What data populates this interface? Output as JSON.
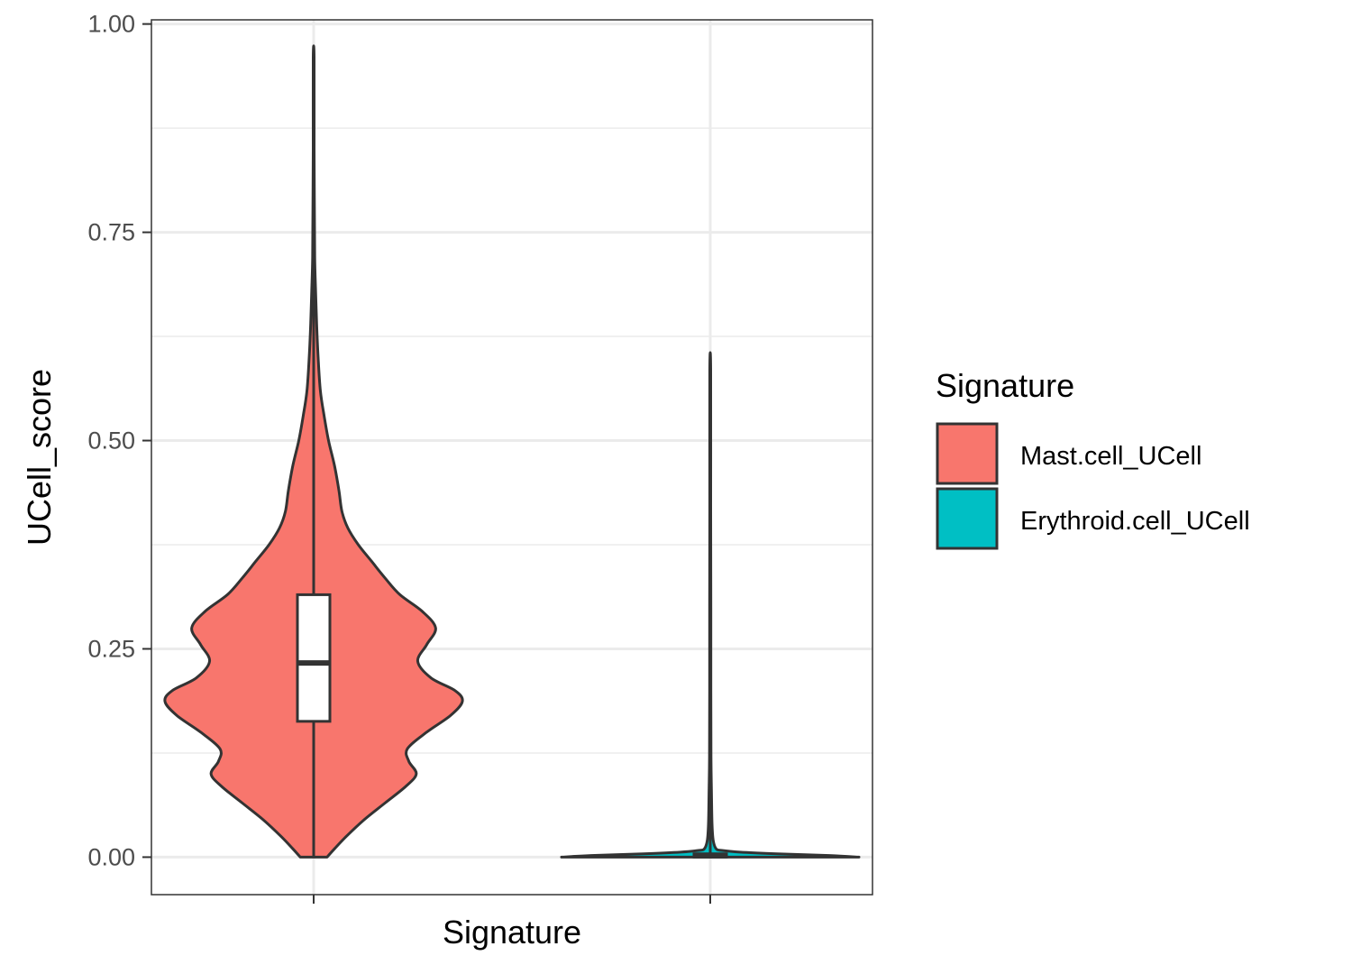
{
  "chart_data": {
    "type": "violin",
    "xlabel": "Signature",
    "ylabel": "UCell_score",
    "ylim": [
      -0.045,
      1.005
    ],
    "y_ticks": [
      0.0,
      0.25,
      0.5,
      0.75,
      1.0
    ],
    "y_tick_labels": [
      "0.00",
      "0.25",
      "0.50",
      "0.75",
      "1.00"
    ],
    "x_tick_labels": [
      "",
      ""
    ],
    "grid": true,
    "legend": {
      "title": "Signature",
      "position": "right"
    },
    "series": [
      {
        "name": "Mast.cell_UCell",
        "color": "#F8766D",
        "min": 0.0,
        "max": 0.96,
        "box": {
          "lower_whisker": 0.0,
          "q1": 0.163,
          "median": 0.233,
          "q3": 0.315,
          "upper_whisker": 0.61
        },
        "density_profile": [
          [
            0.0,
            0.09
          ],
          [
            0.01,
            0.14
          ],
          [
            0.025,
            0.22
          ],
          [
            0.045,
            0.34
          ],
          [
            0.065,
            0.48
          ],
          [
            0.085,
            0.62
          ],
          [
            0.1,
            0.69
          ],
          [
            0.115,
            0.64
          ],
          [
            0.13,
            0.63
          ],
          [
            0.15,
            0.76
          ],
          [
            0.17,
            0.92
          ],
          [
            0.187,
            1.0
          ],
          [
            0.2,
            0.95
          ],
          [
            0.215,
            0.79
          ],
          [
            0.235,
            0.7
          ],
          [
            0.255,
            0.76
          ],
          [
            0.275,
            0.82
          ],
          [
            0.295,
            0.73
          ],
          [
            0.315,
            0.58
          ],
          [
            0.335,
            0.48
          ],
          [
            0.355,
            0.39
          ],
          [
            0.375,
            0.3
          ],
          [
            0.395,
            0.23
          ],
          [
            0.415,
            0.19
          ],
          [
            0.44,
            0.17
          ],
          [
            0.47,
            0.14
          ],
          [
            0.5,
            0.1
          ],
          [
            0.53,
            0.07
          ],
          [
            0.56,
            0.045
          ],
          [
            0.6,
            0.03
          ],
          [
            0.64,
            0.02
          ],
          [
            0.68,
            0.013
          ],
          [
            0.72,
            0.007
          ],
          [
            0.78,
            0.005
          ],
          [
            0.85,
            0.003
          ],
          [
            0.96,
            0.003
          ]
        ]
      },
      {
        "name": "Erythroid.cell_UCell",
        "color": "#00BFC4",
        "min": 0.0,
        "max": 0.585,
        "box": {
          "lower_whisker": 0.0,
          "q1": 0.0,
          "median": 0.002,
          "q3": 0.004,
          "upper_whisker": 0.01
        },
        "density_profile": [
          [
            0.0,
            1.0
          ],
          [
            0.002,
            0.8
          ],
          [
            0.004,
            0.45
          ],
          [
            0.006,
            0.2
          ],
          [
            0.008,
            0.08
          ],
          [
            0.01,
            0.04
          ],
          [
            0.02,
            0.02
          ],
          [
            0.04,
            0.012
          ],
          [
            0.08,
            0.008
          ],
          [
            0.12,
            0.005
          ],
          [
            0.2,
            0.004
          ],
          [
            0.3,
            0.004
          ],
          [
            0.42,
            0.003
          ],
          [
            0.585,
            0.003
          ]
        ]
      }
    ]
  }
}
